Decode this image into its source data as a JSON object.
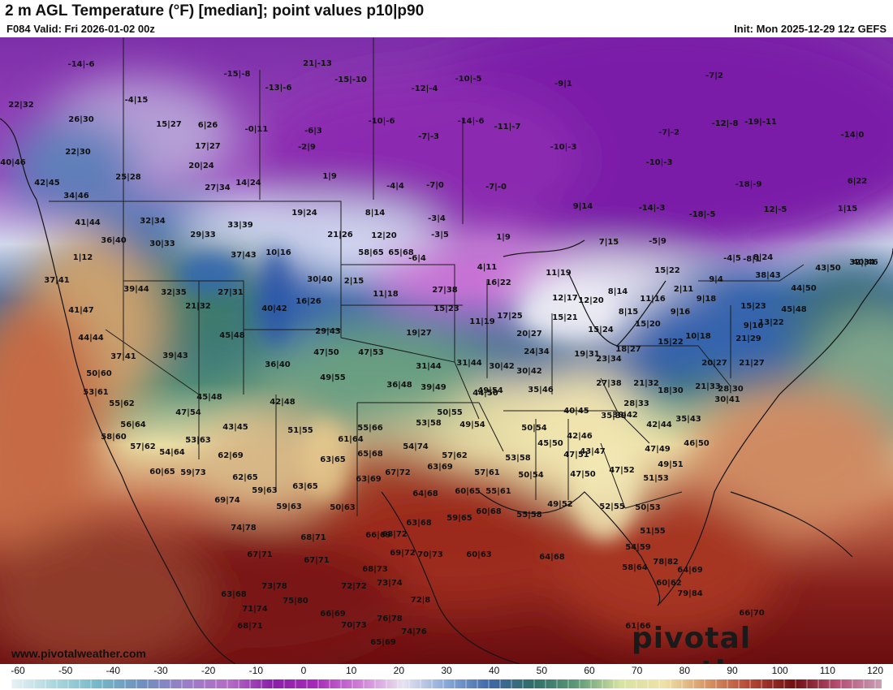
{
  "header": {
    "title": "2 m AGL Temperature (°F) [median]; point values p10|p90",
    "valid": "F084 Valid: Fri 2026-01-02 00z",
    "init": "Init: Mon 2025-12-29 12z GEFS"
  },
  "footer": {
    "credit": "www.pivotalweather.com",
    "brand": "pivotal weather"
  },
  "colorbar": {
    "ticks": [
      "-60",
      "-50",
      "-40",
      "-30",
      "-20",
      "-10",
      "0",
      "10",
      "20",
      "30",
      "40",
      "50",
      "60",
      "70",
      "80",
      "90",
      "100",
      "110",
      "120"
    ],
    "stops": [
      "#e8f2f6",
      "#aad7de",
      "#74b8c8",
      "#6f8fbf",
      "#9a7fc7",
      "#b56cc6",
      "#8a1fa8",
      "#a62cb8",
      "#cf7fd6",
      "#e8e3f0",
      "#88a9d8",
      "#3f68a6",
      "#2f6e68",
      "#5c9a78",
      "#d7e3a0",
      "#efe2a8",
      "#d79563",
      "#b34433",
      "#6f0f12",
      "#b64f73",
      "#c8a0b7"
    ]
  },
  "map": {
    "point_labels": [
      "-14|-6",
      "-15|-8",
      "21|-13",
      "-15|-10",
      "-13|-6",
      "-12|-4",
      "-10|-5",
      "-9|1",
      "-7|2",
      "22|32",
      "-4|15",
      "26|30",
      "15|27",
      "6|26",
      "-0|11",
      "-6|3",
      "-10|-6",
      "-7|-3",
      "-14|-6",
      "-11|-7",
      "-7|-2",
      "-12|-8",
      "-19|-11",
      "-14|0",
      "22|30",
      "17|27",
      "-2|9",
      "-10|-3",
      "40|46",
      "20|24",
      "25|28",
      "-10|-3",
      "42|45",
      "1|9",
      "14|24",
      "27|34",
      "-4|4",
      "-7|0",
      "-7|-0",
      "-18|-9",
      "6|22",
      "34|46",
      "19|24",
      "8|14",
      "-3|4",
      "9|14",
      "-14|-3",
      "-18|-5",
      "12|-5",
      "1|15",
      "41|44",
      "32|34",
      "33|39",
      "21|26",
      "12|20",
      "-3|5",
      "1|9",
      "7|15",
      "-5|9",
      "-8|1",
      "32|34",
      "36|40",
      "30|33",
      "29|33",
      "37|43",
      "10|16",
      "-6|4",
      "-4|5",
      "8|24",
      "40|46",
      "1|12",
      "4|11",
      "11|19",
      "15|22",
      "2|11",
      "43|50",
      "37|41",
      "30|40",
      "2|15",
      "16|22",
      "9|4",
      "38|43",
      "39|44",
      "32|35",
      "27|31",
      "40|42",
      "16|26",
      "27|38",
      "11|18",
      "12|17",
      "12|20",
      "8|14",
      "11|16",
      "9|18",
      "44|50",
      "41|47",
      "21|32",
      "15|23",
      "17|25",
      "15|21",
      "8|15",
      "9|16",
      "15|23",
      "45|48",
      "44|44",
      "45|48",
      "29|43",
      "19|27",
      "11|19",
      "20|27",
      "15|24",
      "15|20",
      "10|18",
      "9|16",
      "13|22",
      "37|41",
      "39|43",
      "36|40",
      "47|50",
      "47|53",
      "31|44",
      "24|34",
      "19|31",
      "18|27",
      "15|22",
      "21|29",
      "50|60",
      "49|55",
      "36|48",
      "39|49",
      "31|44",
      "30|42",
      "30|42",
      "23|34",
      "20|27",
      "21|27",
      "53|61",
      "45|48",
      "42|48",
      "44|50",
      "35|46",
      "27|38",
      "21|32",
      "18|30",
      "21|33",
      "28|30",
      "55|62",
      "47|54",
      "51|55",
      "50|55",
      "49|54",
      "40|45",
      "30|42",
      "28|33",
      "30|41",
      "56|64",
      "43|45",
      "55|66",
      "53|58",
      "49|54",
      "50|54",
      "35|39",
      "35|43",
      "58|60",
      "53|63",
      "61|64",
      "54|74",
      "45|50",
      "42|46",
      "42|44",
      "57|62",
      "54|64",
      "62|69",
      "63|65",
      "65|68",
      "57|62",
      "53|58",
      "47|51",
      "43|47",
      "47|49",
      "46|50",
      "60|65",
      "59|73",
      "62|65",
      "67|72",
      "63|69",
      "57|61",
      "50|54",
      "47|50",
      "47|52",
      "49|51",
      "59|63",
      "63|65",
      "63|69",
      "64|68",
      "60|65",
      "55|61",
      "51|53",
      "69|74",
      "59|63",
      "50|63",
      "63|68",
      "59|65",
      "60|68",
      "55|58",
      "49|52",
      "52|55",
      "50|53",
      "74|78",
      "66|69",
      "68|71",
      "68|72",
      "51|55",
      "67|71",
      "60|63",
      "64|68",
      "54|59",
      "78|82",
      "67|71",
      "68|73",
      "69|72",
      "70|73",
      "58|64",
      "64|69",
      "73|78",
      "72|72",
      "73|74",
      "60|62",
      "63|68",
      "72|8",
      "71|74",
      "75|80",
      "79|84",
      "66|70",
      "68|71",
      "66|69",
      "70|73",
      "76|78",
      "74|76",
      "61|66",
      "65|69",
      "58|65",
      "65|68"
    ]
  }
}
